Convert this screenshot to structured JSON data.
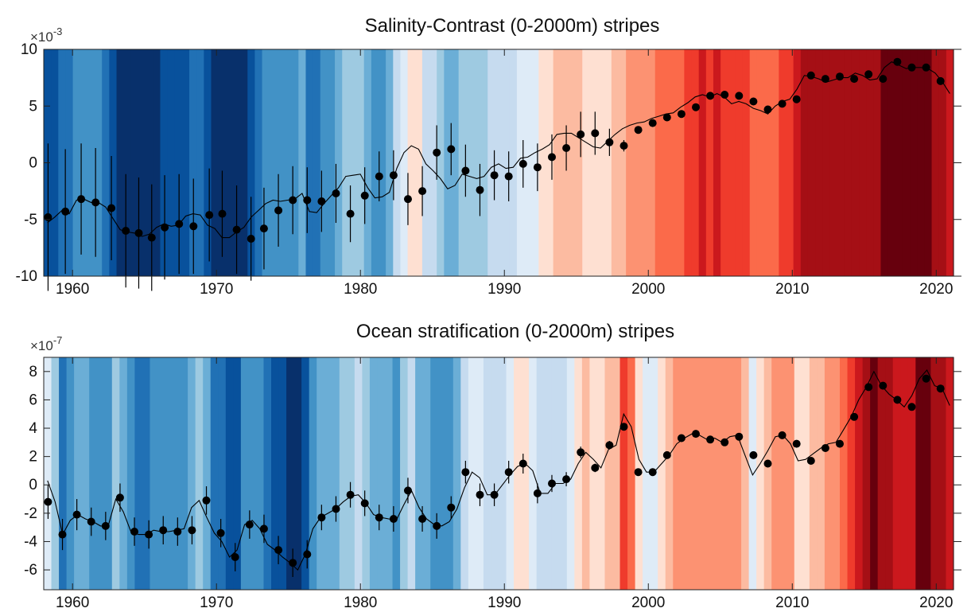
{
  "chart_data": [
    {
      "type": "line",
      "title": "Salinity-Contrast (0-2000m) stripes",
      "y_multiplier_base": "×10",
      "y_multiplier_exp": "-3",
      "xlim": [
        1958,
        2021.2
      ],
      "ylim": [
        -10,
        10
      ],
      "x_ticks": [
        1960,
        1970,
        1980,
        1990,
        2000,
        2010,
        2020
      ],
      "y_ticks": [
        10,
        5,
        0,
        -5,
        -10
      ],
      "grid": false,
      "stripe_colors": [
        "#08306b",
        "#08519c",
        "#2171b5",
        "#4292c6",
        "#6baed6",
        "#9ecae1",
        "#c6dbef",
        "#deebf7",
        "#fee0d2",
        "#fcbba1",
        "#fc9272",
        "#fb6a4a",
        "#ef3b2c",
        "#cb181d",
        "#a50f15",
        "#67000d"
      ],
      "stripe_values": [
        -5.3,
        -4.8,
        -4.2,
        -4.5,
        -3.3,
        -3.2,
        -3.5,
        -3.5,
        -3.9,
        -4.9,
        -5.9,
        -6.1,
        -6.2,
        -6.5,
        -6.3,
        -5.7,
        -5.4,
        -5.6,
        -5.5,
        -4.7,
        -4.5,
        -4.6,
        -5.5,
        -5.8,
        -6.6,
        -6.6,
        -6.1,
        -5.7,
        -4.8,
        -4.2,
        -3.6,
        -3.3,
        -3.4,
        -3.3,
        -3.2,
        -2.7,
        -4.3,
        -4.4,
        -3.6,
        -2.9,
        -2.2,
        -1.2,
        -1.1,
        -1.0,
        -2.2,
        -3.1,
        -3.0,
        -2.6,
        -0.5,
        0.9,
        1.5,
        1.2,
        -0.1,
        -0.7,
        -1.4,
        -2.3,
        -2.0,
        -1.0,
        -1.2,
        -1.4,
        -1.2,
        -0.4,
        -0.1,
        -0.5,
        -0.4,
        0.4,
        0.5,
        0.9,
        1.2,
        1.6,
        2.5,
        2.6,
        2.6,
        2.2,
        1.8,
        1.4,
        1.3,
        1.9,
        2.5,
        3.0,
        3.3,
        3.5,
        3.6,
        3.9,
        4.1,
        4.3,
        4.4,
        4.9,
        5.3,
        5.8,
        6.0,
        5.8,
        6.1,
        5.8,
        5.2,
        5.4,
        5.2,
        4.8,
        4.6,
        4.3,
        5.0,
        5.4,
        5.6,
        6.5,
        7.7,
        7.6,
        7.4,
        7.1,
        7.3,
        7.5,
        7.5,
        7.9,
        7.7,
        7.3,
        7.4,
        8.4,
        8.9,
        8.6,
        8.3,
        8.4,
        8.4,
        8.3,
        7.9,
        7.1,
        6.1
      ],
      "x": [
        1958.3,
        1959.5,
        1960.6,
        1961.6,
        1962.7,
        1963.7,
        1964.6,
        1965.5,
        1966.4,
        1967.4,
        1968.4,
        1969.5,
        1970.4,
        1971.4,
        1972.4,
        1973.3,
        1974.3,
        1975.3,
        1976.3,
        1977.3,
        1978.3,
        1979.3,
        1980.3,
        1981.3,
        1982.3,
        1983.3,
        1984.3,
        1985.3,
        1986.3,
        1987.3,
        1988.3,
        1989.3,
        1990.3,
        1991.3,
        1992.3,
        1993.3,
        1994.3,
        1995.3,
        1996.3,
        1997.3,
        1998.3,
        1999.3,
        2000.3,
        2001.3,
        2002.3,
        2003.3,
        2004.3,
        2005.3,
        2006.3,
        2007.3,
        2008.3,
        2009.3,
        2010.3,
        2011.3,
        2012.3,
        2013.3,
        2014.3,
        2015.3,
        2016.3,
        2017.3,
        2018.3,
        2019.3,
        2020.3
      ],
      "series": [
        {
          "values": [
            -4.8,
            -4.3,
            -3.2,
            -3.5,
            -4.0,
            -6.0,
            -6.2,
            -6.6,
            -5.7,
            -5.4,
            -5.6,
            -4.6,
            -4.5,
            -5.9,
            -6.7,
            -5.8,
            -4.2,
            -3.3,
            -3.3,
            -3.4,
            -2.7,
            -4.5,
            -2.9,
            -1.2,
            -1.1,
            -3.2,
            -2.5,
            0.9,
            1.2,
            -0.7,
            -2.4,
            -1.1,
            -1.2,
            -0.1,
            -0.4,
            0.5,
            1.3,
            2.5,
            2.6,
            1.8,
            1.5,
            2.9,
            3.5,
            4.0,
            4.3,
            4.9,
            5.9,
            6.0,
            5.9,
            5.4,
            4.7,
            5.2,
            5.6,
            7.7,
            7.4,
            7.6,
            7.4,
            7.8,
            7.4,
            8.9,
            8.4,
            8.4,
            7.2
          ],
          "error": [
            6.5,
            5.5,
            4.9,
            4.8,
            4.6,
            5.0,
            4.9,
            4.7,
            4.6,
            4.4,
            4.2,
            4.1,
            3.8,
            3.9,
            3.7,
            3.6,
            3.2,
            3.0,
            2.9,
            2.7,
            2.6,
            2.5,
            2.5,
            2.2,
            2.2,
            2.3,
            2.2,
            2.4,
            2.3,
            2.3,
            2.3,
            2.2,
            2.2,
            2.1,
            2.1,
            2.0,
            2.0,
            2.0,
            1.9,
            1.2,
            0.5,
            0.3,
            0.3,
            0.3,
            0.3,
            0.2,
            0.2,
            0.2,
            0.2,
            0.2,
            0.2,
            0.2,
            0.2,
            0.2,
            0.2,
            0.2,
            0.2,
            0.2,
            0.2,
            0.2,
            0.2,
            0.2,
            0.2
          ]
        }
      ]
    },
    {
      "type": "line",
      "title": "Ocean stratification (0-2000m) stripes",
      "y_multiplier_base": "×10",
      "y_multiplier_exp": "-7",
      "xlim": [
        1958,
        2021.2
      ],
      "ylim": [
        -7.4,
        9
      ],
      "x_ticks": [
        1960,
        1970,
        1980,
        1990,
        2000,
        2010,
        2020
      ],
      "y_ticks": [
        8,
        6,
        4,
        2,
        0,
        -2,
        -4,
        -6
      ],
      "grid": false,
      "stripe_colors": [
        "#08306b",
        "#08519c",
        "#2171b5",
        "#4292c6",
        "#6baed6",
        "#9ecae1",
        "#c6dbef",
        "#deebf7",
        "#fee0d2",
        "#fcbba1",
        "#fc9272",
        "#fb6a4a",
        "#ef3b2c",
        "#cb181d",
        "#a50f15",
        "#67000d"
      ],
      "stripe_values": [
        0.3,
        -1.2,
        -3.5,
        -2.5,
        -2.1,
        -2.4,
        -2.6,
        -2.9,
        -2.9,
        -1.0,
        -1.9,
        -3.3,
        -3.5,
        -3.5,
        -3.2,
        -3.3,
        -3.3,
        -3.2,
        -3.1,
        -1.6,
        -1.1,
        -2.3,
        -3.4,
        -4.0,
        -5.1,
        -4.6,
        -2.8,
        -2.5,
        -3.1,
        -4.2,
        -4.6,
        -5.1,
        -5.5,
        -6.0,
        -4.9,
        -3.1,
        -2.3,
        -2.0,
        -1.7,
        -1.2,
        -0.8,
        -0.7,
        -1.3,
        -2.1,
        -2.3,
        -2.4,
        -2.5,
        -1.4,
        -0.4,
        -1.6,
        -2.4,
        -2.8,
        -2.9,
        -2.6,
        -1.7,
        -0.2,
        0.9,
        0.5,
        -0.7,
        -0.7,
        0.0,
        0.7,
        1.3,
        1.5,
        1.0,
        -0.6,
        -0.6,
        0.1,
        0.1,
        0.4,
        1.5,
        2.3,
        1.8,
        1.2,
        2.5,
        2.8,
        5.0,
        4.1,
        1.8,
        0.9,
        0.9,
        1.5,
        2.1,
        2.9,
        3.3,
        3.6,
        3.5,
        3.2,
        3.3,
        3.0,
        3.4,
        3.5,
        2.1,
        0.7,
        1.5,
        2.4,
        3.4,
        3.5,
        2.9,
        1.7,
        1.8,
        2.2,
        2.6,
        2.9,
        3.0,
        3.9,
        4.8,
        6.0,
        6.9,
        8.0,
        7.0,
        6.4,
        6.0,
        5.5,
        6.3,
        7.5,
        8.1,
        7.0,
        6.8,
        5.6
      ],
      "x": [
        1958.3,
        1959.3,
        1960.3,
        1961.3,
        1962.3,
        1963.3,
        1964.3,
        1965.3,
        1966.3,
        1967.3,
        1968.3,
        1969.3,
        1970.3,
        1971.3,
        1972.3,
        1973.3,
        1974.3,
        1975.3,
        1976.3,
        1977.3,
        1978.3,
        1979.3,
        1980.3,
        1981.3,
        1982.3,
        1983.3,
        1984.3,
        1985.3,
        1986.3,
        1987.3,
        1988.3,
        1989.3,
        1990.3,
        1991.3,
        1992.3,
        1993.3,
        1994.3,
        1995.3,
        1996.3,
        1997.3,
        1998.3,
        1999.3,
        2000.3,
        2001.3,
        2002.3,
        2003.3,
        2004.3,
        2005.3,
        2006.3,
        2007.3,
        2008.3,
        2009.3,
        2010.3,
        2011.3,
        2012.3,
        2013.3,
        2014.3,
        2015.3,
        2016.3,
        2017.3,
        2018.3,
        2019.3,
        2020.3
      ],
      "series": [
        {
          "values": [
            -1.2,
            -3.5,
            -2.1,
            -2.6,
            -2.9,
            -0.9,
            -3.3,
            -3.5,
            -3.2,
            -3.3,
            -3.2,
            -1.1,
            -3.4,
            -5.1,
            -2.8,
            -3.1,
            -4.6,
            -5.5,
            -4.9,
            -2.3,
            -1.7,
            -0.7,
            -1.3,
            -2.3,
            -2.4,
            -0.4,
            -2.4,
            -2.9,
            -1.6,
            0.9,
            -0.7,
            -0.7,
            0.9,
            1.5,
            -0.6,
            0.1,
            0.4,
            2.3,
            1.2,
            2.8,
            4.1,
            0.9,
            0.9,
            2.1,
            3.3,
            3.6,
            3.2,
            3.0,
            3.4,
            2.1,
            1.5,
            3.5,
            2.9,
            1.7,
            2.6,
            2.9,
            4.8,
            6.9,
            7.0,
            6.0,
            5.5,
            7.5,
            6.8
          ],
          "error": [
            1.2,
            1.1,
            1.1,
            1.0,
            1.0,
            1.0,
            1.0,
            1.0,
            1.0,
            1.0,
            1.0,
            1.0,
            1.0,
            1.0,
            1.0,
            1.0,
            1.0,
            1.0,
            1.0,
            0.9,
            0.9,
            0.9,
            0.9,
            0.9,
            0.9,
            0.9,
            0.9,
            0.9,
            0.8,
            0.8,
            0.8,
            0.8,
            0.8,
            0.7,
            0.7,
            0.6,
            0.5,
            0.4,
            0.3,
            0.3,
            0.2,
            0.2,
            0.2,
            0.2,
            0.2,
            0.2,
            0.2,
            0.2,
            0.2,
            0.2,
            0.2,
            0.2,
            0.2,
            0.2,
            0.2,
            0.2,
            0.2,
            0.2,
            0.2,
            0.2,
            0.2,
            0.2,
            0.2
          ]
        }
      ]
    }
  ]
}
